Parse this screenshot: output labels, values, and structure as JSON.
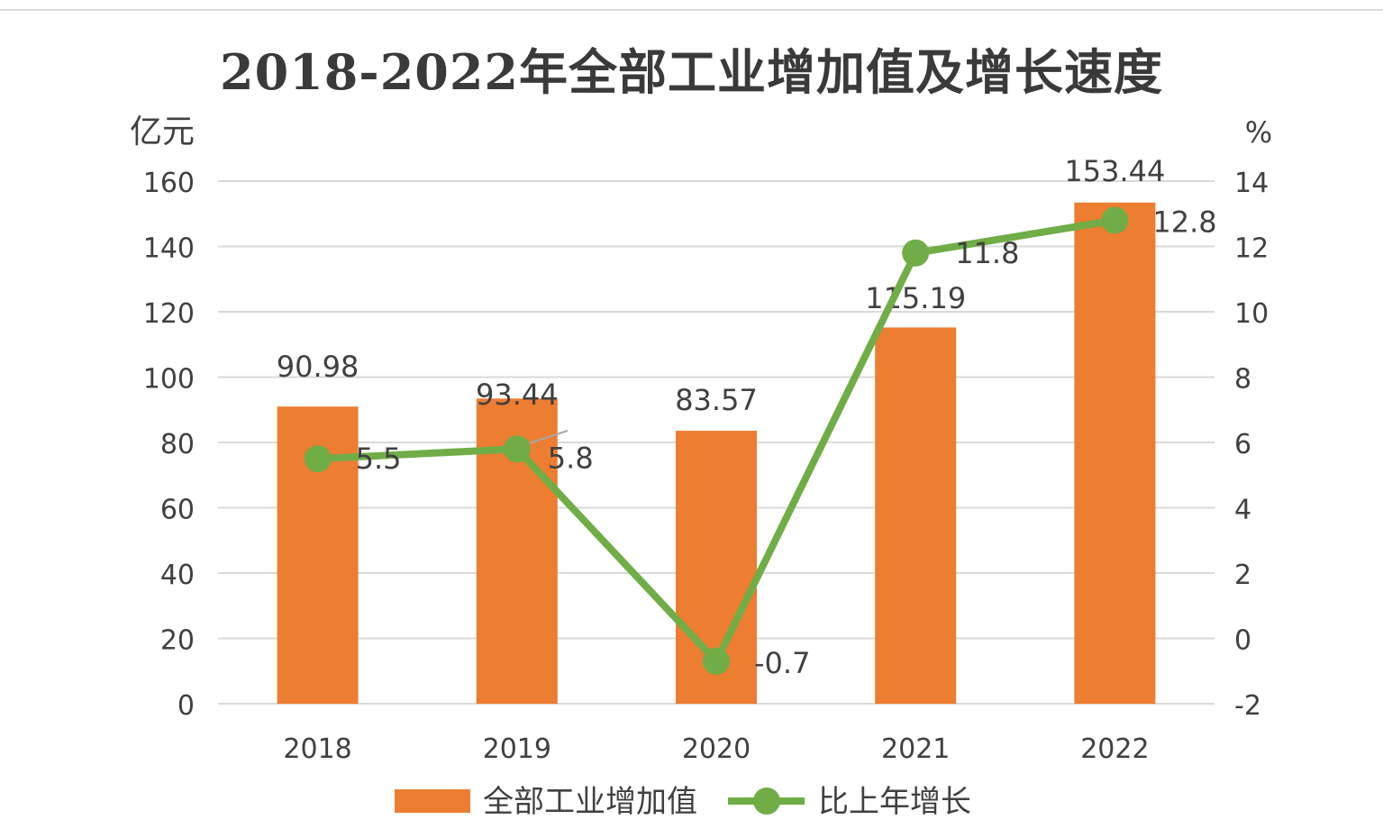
{
  "chart_data": {
    "type": "bar",
    "title": "2018-2022年全部工业增加值及增长速度",
    "categories": [
      "2018",
      "2019",
      "2020",
      "2021",
      "2022"
    ],
    "y_left_unit": "亿元",
    "y_right_unit": "%",
    "y_left_lim": [
      0,
      160
    ],
    "y_left_ticks": [
      "0",
      "20",
      "40",
      "60",
      "80",
      "100",
      "120",
      "140",
      "160"
    ],
    "y_right_lim": [
      -2,
      14
    ],
    "y_right_ticks": [
      "-2",
      "0",
      "2",
      "4",
      "6",
      "8",
      "10",
      "12",
      "14"
    ],
    "grid": true,
    "legend_position": "bottom",
    "series": [
      {
        "name": "全部工业增加值",
        "type": "bar",
        "axis": "left",
        "color": "#ED7D31",
        "values": [
          90.98,
          93.44,
          83.57,
          115.19,
          153.44
        ],
        "labels": [
          "90.98",
          "93.44",
          "83.57",
          "115.19",
          "153.44"
        ]
      },
      {
        "name": "比上年增长",
        "type": "line",
        "axis": "right",
        "color": "#70AD47",
        "values": [
          5.5,
          5.8,
          -0.7,
          11.8,
          12.8
        ],
        "labels": [
          "5.5",
          "5.8",
          "-0.7",
          "11.8",
          "12.8"
        ]
      }
    ]
  }
}
